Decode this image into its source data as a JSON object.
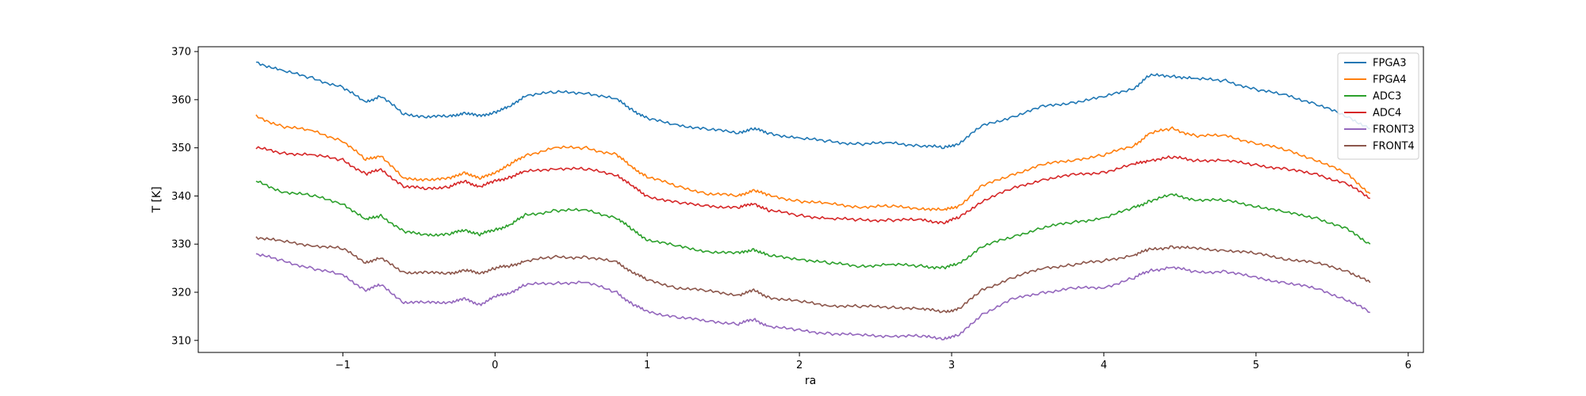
{
  "chart_data": {
    "type": "line",
    "title": "",
    "xlabel": "ra",
    "ylabel": "T [K]",
    "xlim": [
      -1.95,
      6.1
    ],
    "ylim": [
      307.5,
      371
    ],
    "xticks": [
      -1,
      0,
      1,
      2,
      3,
      4,
      5,
      6
    ],
    "yticks": [
      310,
      320,
      330,
      340,
      350,
      360,
      370
    ],
    "grid": false,
    "legend_position": "upper right",
    "x": [
      -1.57,
      -1.4,
      -1.2,
      -1.0,
      -0.85,
      -0.75,
      -0.6,
      -0.45,
      -0.3,
      -0.2,
      -0.1,
      0.0,
      0.1,
      0.2,
      0.4,
      0.6,
      0.8,
      0.9,
      1.0,
      1.2,
      1.4,
      1.6,
      1.7,
      1.8,
      2.0,
      2.2,
      2.4,
      2.6,
      2.8,
      2.95,
      3.05,
      3.2,
      3.4,
      3.6,
      3.8,
      4.0,
      4.2,
      4.3,
      4.45,
      4.6,
      4.8,
      5.0,
      5.2,
      5.4,
      5.6,
      5.75
    ],
    "series": [
      {
        "name": "FPGA3",
        "color": "#1f77b4",
        "values": [
          367.8,
          366.0,
          364.5,
          362.5,
          359.5,
          360.8,
          357.0,
          356.5,
          356.5,
          357.3,
          356.5,
          357.5,
          358.5,
          361.0,
          361.5,
          361.5,
          360.0,
          358.0,
          356.0,
          354.8,
          353.8,
          353.2,
          354.0,
          353.0,
          352.0,
          351.3,
          350.8,
          351.0,
          350.5,
          350.0,
          351.0,
          354.5,
          356.5,
          358.5,
          359.5,
          360.5,
          362.5,
          365.0,
          365.0,
          364.3,
          364.0,
          362.0,
          361.0,
          359.0,
          356.5,
          354.0
        ]
      },
      {
        "name": "FPGA4",
        "color": "#ff7f0e",
        "values": [
          356.5,
          354.5,
          353.5,
          351.5,
          347.5,
          348.5,
          343.5,
          343.5,
          343.5,
          345.0,
          343.5,
          345.0,
          346.5,
          348.5,
          350.0,
          350.0,
          348.5,
          346.0,
          344.0,
          342.0,
          340.5,
          340.0,
          341.3,
          340.0,
          339.0,
          338.3,
          337.8,
          337.8,
          337.5,
          337.0,
          338.0,
          342.0,
          344.5,
          346.5,
          347.5,
          348.5,
          350.5,
          353.0,
          354.0,
          352.5,
          352.5,
          351.0,
          349.5,
          347.5,
          344.5,
          340.5
        ]
      },
      {
        "name": "ADC3",
        "color": "#2ca02c",
        "values": [
          343.0,
          341.0,
          340.0,
          338.5,
          335.0,
          336.0,
          332.5,
          332.0,
          332.0,
          333.0,
          332.0,
          333.0,
          334.0,
          336.0,
          337.0,
          337.0,
          335.5,
          333.0,
          331.0,
          329.5,
          328.5,
          328.0,
          329.0,
          327.5,
          327.0,
          326.0,
          325.5,
          325.7,
          325.5,
          325.0,
          326.0,
          329.5,
          331.5,
          333.5,
          334.5,
          335.5,
          337.5,
          339.0,
          340.2,
          339.3,
          339.0,
          338.0,
          336.5,
          335.5,
          333.0,
          330.0
        ]
      },
      {
        "name": "ADC4",
        "color": "#d62728",
        "values": [
          350.0,
          349.0,
          348.5,
          347.5,
          344.5,
          345.5,
          342.0,
          341.5,
          342.0,
          343.0,
          342.0,
          343.0,
          344.0,
          345.0,
          345.8,
          345.5,
          344.5,
          342.0,
          340.0,
          338.5,
          338.0,
          337.5,
          338.5,
          337.0,
          336.0,
          335.3,
          335.0,
          335.0,
          335.0,
          334.5,
          335.5,
          339.0,
          341.5,
          343.5,
          344.3,
          345.0,
          346.5,
          347.5,
          348.0,
          347.5,
          347.3,
          346.5,
          345.5,
          344.5,
          342.5,
          339.5
        ]
      },
      {
        "name": "FRONT3",
        "color": "#9467bd",
        "values": [
          328.0,
          326.5,
          325.0,
          323.5,
          320.5,
          321.5,
          318.0,
          317.8,
          318.0,
          318.5,
          317.5,
          319.0,
          320.0,
          321.5,
          322.0,
          322.0,
          320.0,
          317.5,
          316.0,
          314.8,
          314.0,
          313.5,
          314.3,
          313.0,
          312.0,
          311.5,
          311.0,
          311.0,
          310.8,
          310.5,
          311.0,
          315.5,
          318.5,
          320.0,
          320.8,
          321.0,
          323.0,
          324.5,
          325.2,
          324.2,
          324.3,
          323.0,
          322.0,
          320.7,
          318.5,
          315.8
        ]
      },
      {
        "name": "FRONT4",
        "color": "#8c564b",
        "values": [
          331.5,
          330.5,
          329.8,
          329.0,
          326.3,
          327.0,
          324.2,
          324.0,
          324.0,
          324.5,
          324.0,
          325.0,
          325.5,
          326.5,
          327.3,
          327.3,
          326.2,
          324.3,
          322.5,
          321.0,
          320.2,
          319.5,
          320.3,
          319.0,
          318.0,
          317.3,
          317.0,
          317.0,
          316.5,
          316.0,
          316.5,
          320.5,
          323.0,
          325.0,
          325.8,
          326.5,
          327.8,
          328.8,
          329.5,
          329.0,
          328.8,
          328.0,
          327.0,
          326.0,
          324.5,
          322.0
        ]
      }
    ]
  }
}
